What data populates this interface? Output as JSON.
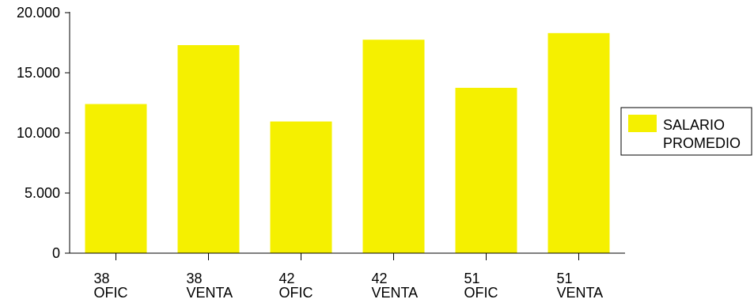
{
  "chart_data": {
    "type": "bar",
    "categories": [
      [
        "38",
        "OFIC"
      ],
      [
        "38",
        "VENTA"
      ],
      [
        "42",
        "OFIC"
      ],
      [
        "42",
        "VENTA"
      ],
      [
        "51",
        "OFIC"
      ],
      [
        "51",
        "VENTA"
      ]
    ],
    "series": [
      {
        "name": "SALARIO PROMEDIO",
        "legend_lines": [
          "SALARIO",
          "PROMEDIO"
        ],
        "color": "#f5f000",
        "values": [
          12400,
          17300,
          10950,
          17750,
          13750,
          18300
        ]
      }
    ],
    "ylim": [
      0,
      20000
    ],
    "yticks": [
      0,
      5000,
      10000,
      15000,
      20000
    ],
    "ytick_labels": [
      "0",
      "5.000",
      "10.000",
      "15.000",
      "20.000"
    ],
    "grid": false,
    "legend_position": "right",
    "title": "",
    "xlabel": "",
    "ylabel": ""
  }
}
